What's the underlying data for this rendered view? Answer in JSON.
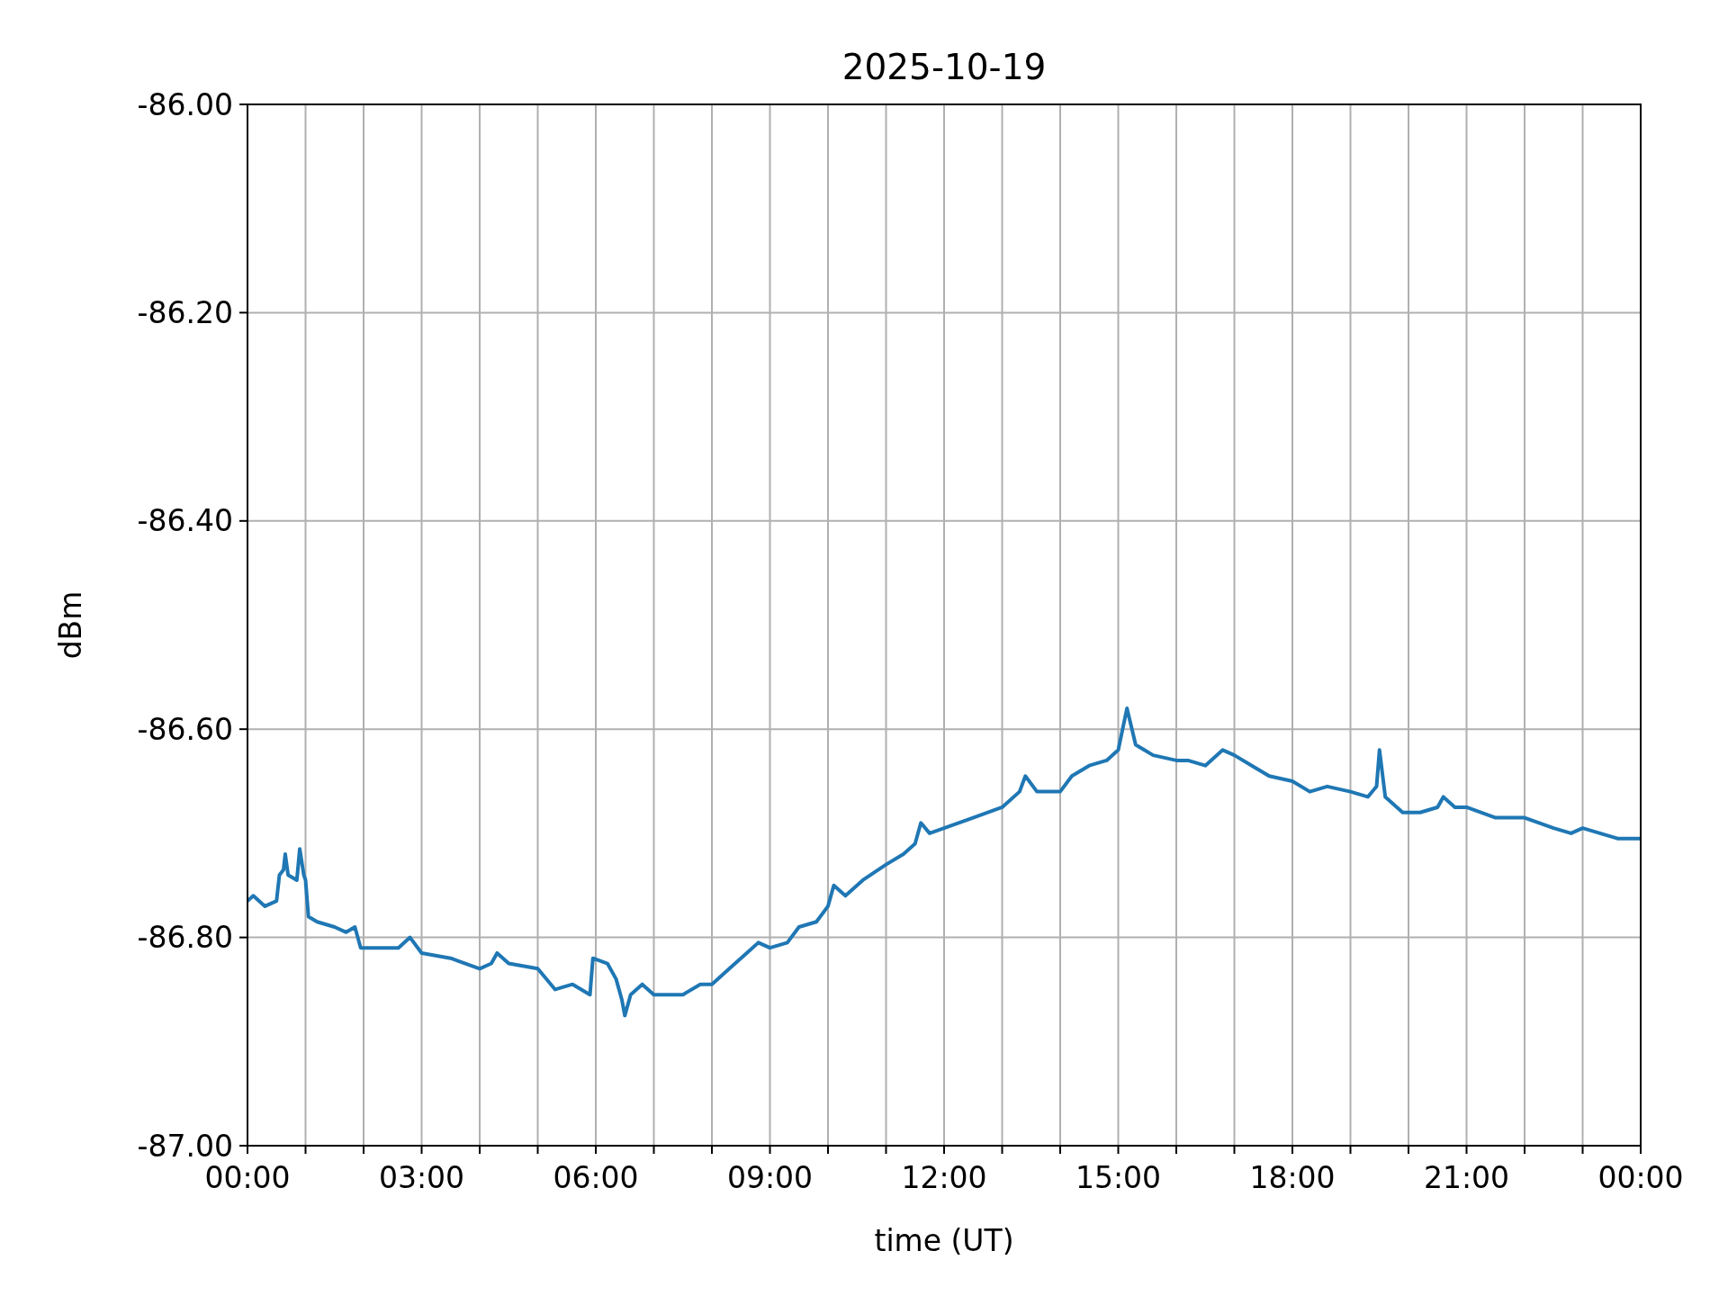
{
  "chart_data": {
    "type": "line",
    "title": "2025-10-19",
    "xlabel": "time (UT)",
    "ylabel": "dBm",
    "x": [
      0,
      0.1,
      0.3,
      0.5,
      0.55,
      0.62,
      0.65,
      0.7,
      0.85,
      0.9,
      0.97,
      1.0,
      1.05,
      1.2,
      1.5,
      1.7,
      1.85,
      1.95,
      2.2,
      2.6,
      2.8,
      3.0,
      3.5,
      4.0,
      4.2,
      4.3,
      4.5,
      5.0,
      5.3,
      5.6,
      5.9,
      5.95,
      6.2,
      6.35,
      6.45,
      6.5,
      6.6,
      6.8,
      7.0,
      7.5,
      7.8,
      8.0,
      8.3,
      8.6,
      8.8,
      9.0,
      9.3,
      9.5,
      9.8,
      10.0,
      10.1,
      10.3,
      10.6,
      11.0,
      11.3,
      11.5,
      11.6,
      11.75,
      12.0,
      12.5,
      13.0,
      13.3,
      13.4,
      13.6,
      14.0,
      14.2,
      14.5,
      14.8,
      15.0,
      15.15,
      15.3,
      15.6,
      16.0,
      16.2,
      16.5,
      16.8,
      17.0,
      17.3,
      17.6,
      18.0,
      18.3,
      18.6,
      19.0,
      19.3,
      19.45,
      19.5,
      19.6,
      19.9,
      20.2,
      20.5,
      20.6,
      20.8,
      21.0,
      21.5,
      22.0,
      22.5,
      22.8,
      23.0,
      23.3,
      23.6,
      24.0
    ],
    "series": [
      {
        "color": "#1f77b4",
        "values": [
          -86.765,
          -86.76,
          -86.77,
          -86.765,
          -86.74,
          -86.735,
          -86.72,
          -86.74,
          -86.745,
          -86.715,
          -86.74,
          -86.745,
          -86.78,
          -86.785,
          -86.79,
          -86.795,
          -86.79,
          -86.81,
          -86.81,
          -86.81,
          -86.8,
          -86.815,
          -86.82,
          -86.83,
          -86.825,
          -86.815,
          -86.825,
          -86.83,
          -86.85,
          -86.845,
          -86.855,
          -86.82,
          -86.825,
          -86.84,
          -86.86,
          -86.875,
          -86.855,
          -86.845,
          -86.855,
          -86.855,
          -86.845,
          -86.845,
          -86.83,
          -86.815,
          -86.805,
          -86.81,
          -86.805,
          -86.79,
          -86.785,
          -86.77,
          -86.75,
          -86.76,
          -86.745,
          -86.73,
          -86.72,
          -86.71,
          -86.69,
          -86.7,
          -86.695,
          -86.685,
          -86.675,
          -86.66,
          -86.645,
          -86.66,
          -86.66,
          -86.645,
          -86.635,
          -86.63,
          -86.62,
          -86.58,
          -86.615,
          -86.625,
          -86.63,
          -86.63,
          -86.635,
          -86.62,
          -86.625,
          -86.635,
          -86.645,
          -86.65,
          -86.66,
          -86.655,
          -86.66,
          -86.665,
          -86.655,
          -86.62,
          -86.665,
          -86.68,
          -86.68,
          -86.675,
          -86.665,
          -86.675,
          -86.675,
          -86.685,
          -86.685,
          -86.695,
          -86.7,
          -86.695,
          -86.7,
          -86.705,
          -86.705
        ]
      }
    ],
    "xlim": [
      0,
      24
    ],
    "xticks": [
      {
        "value": 0,
        "label": "00:00"
      },
      {
        "value": 1,
        "label": null
      },
      {
        "value": 2,
        "label": null
      },
      {
        "value": 3,
        "label": "03:00"
      },
      {
        "value": 4,
        "label": null
      },
      {
        "value": 5,
        "label": null
      },
      {
        "value": 6,
        "label": "06:00"
      },
      {
        "value": 7,
        "label": null
      },
      {
        "value": 8,
        "label": null
      },
      {
        "value": 9,
        "label": "09:00"
      },
      {
        "value": 10,
        "label": null
      },
      {
        "value": 11,
        "label": null
      },
      {
        "value": 12,
        "label": "12:00"
      },
      {
        "value": 13,
        "label": null
      },
      {
        "value": 14,
        "label": null
      },
      {
        "value": 15,
        "label": "15:00"
      },
      {
        "value": 16,
        "label": null
      },
      {
        "value": 17,
        "label": null
      },
      {
        "value": 18,
        "label": "18:00"
      },
      {
        "value": 19,
        "label": null
      },
      {
        "value": 20,
        "label": null
      },
      {
        "value": 21,
        "label": "21:00"
      },
      {
        "value": 22,
        "label": null
      },
      {
        "value": 23,
        "label": null
      },
      {
        "value": 24,
        "label": "00:00"
      }
    ],
    "ylim": [
      -87,
      -86
    ],
    "yticks": [
      {
        "value": -87,
        "label": "-87.00"
      },
      {
        "value": -86.8,
        "label": "-86.80"
      },
      {
        "value": -86.6,
        "label": "-86.60"
      },
      {
        "value": -86.4,
        "label": "-86.40"
      },
      {
        "value": -86.2,
        "label": "-86.20"
      },
      {
        "value": -86,
        "label": "-86.00"
      }
    ],
    "grid": true,
    "marker": "none",
    "line_style": "solid"
  }
}
